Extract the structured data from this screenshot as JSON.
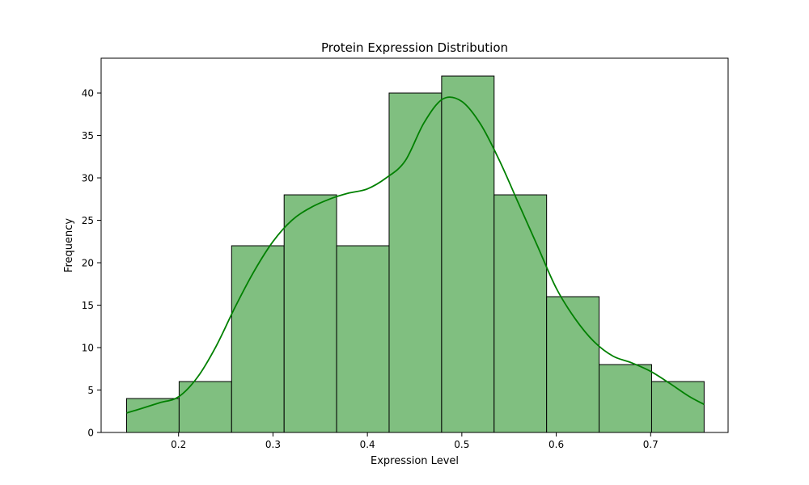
{
  "chart_data": {
    "type": "bar",
    "subtype": "histogram",
    "title": "Protein Expression Distribution",
    "xlabel": "Expression Level",
    "ylabel": "Frequency",
    "xlim": [
      0.118,
      0.782
    ],
    "ylim": [
      0,
      44.1
    ],
    "xticks": [
      "0.2",
      "0.3",
      "0.4",
      "0.5",
      "0.6",
      "0.7"
    ],
    "yticks": [
      "0",
      "5",
      "10",
      "15",
      "20",
      "25",
      "30",
      "35",
      "40"
    ],
    "bin_edges": [
      0.145,
      0.2006,
      0.2562,
      0.3118,
      0.3674,
      0.423,
      0.4786,
      0.5342,
      0.5898,
      0.6454,
      0.701,
      0.7566
    ],
    "counts": [
      4,
      6,
      22,
      28,
      22,
      40,
      42,
      28,
      16,
      8,
      6
    ],
    "kde": {
      "x": [
        0.145,
        0.16,
        0.18,
        0.2,
        0.22,
        0.24,
        0.26,
        0.28,
        0.3,
        0.32,
        0.34,
        0.36,
        0.38,
        0.4,
        0.42,
        0.44,
        0.46,
        0.48,
        0.5,
        0.52,
        0.54,
        0.56,
        0.58,
        0.6,
        0.62,
        0.64,
        0.66,
        0.68,
        0.7,
        0.72,
        0.74,
        0.7566
      ],
      "y": [
        2.3,
        2.8,
        3.5,
        4.2,
        6.5,
        10.2,
        14.8,
        19.0,
        22.5,
        25.0,
        26.5,
        27.5,
        28.2,
        28.7,
        30.0,
        32.0,
        36.5,
        39.3,
        39.0,
        36.3,
        32.0,
        27.0,
        22.0,
        17.0,
        13.4,
        10.7,
        9.0,
        8.2,
        7.2,
        5.8,
        4.3,
        3.3
      ]
    },
    "bar_color": "#80bf80",
    "bar_edge_color": "#000000",
    "kde_color": "#008000",
    "grid": false,
    "legend": false
  }
}
